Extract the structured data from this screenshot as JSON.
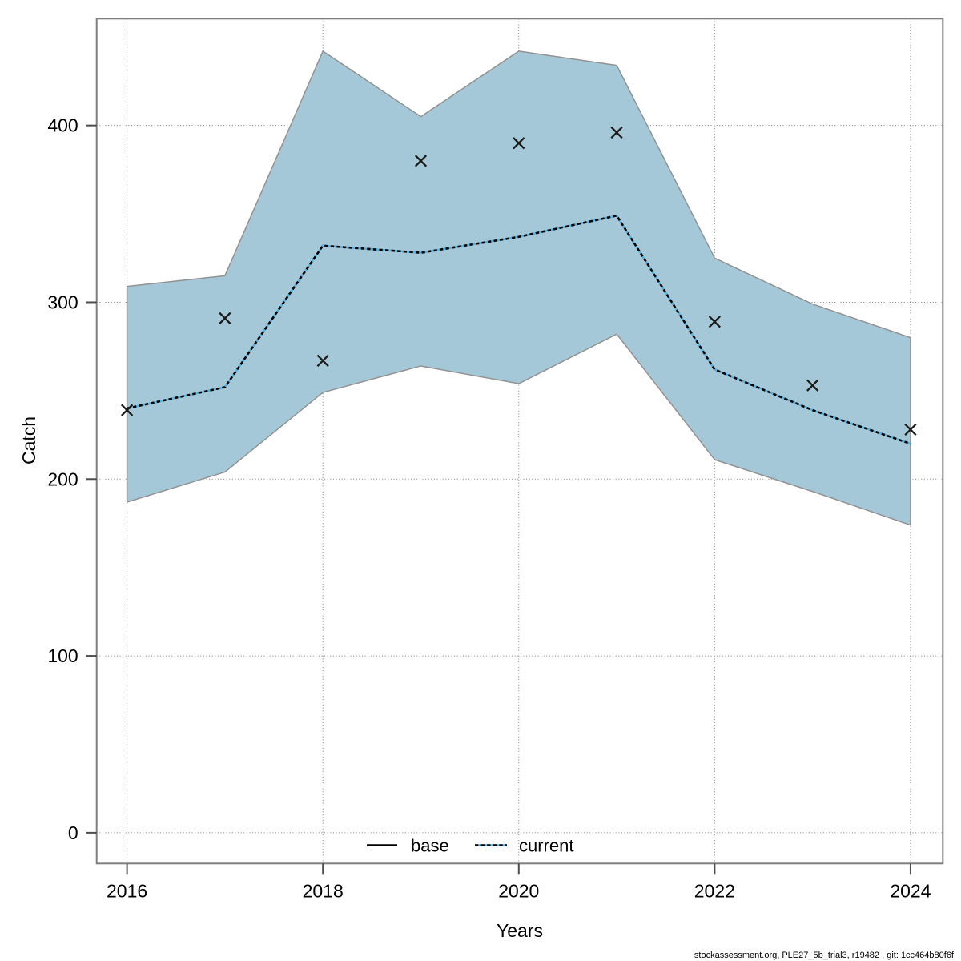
{
  "page": {
    "footer_text": "stockassessment.org, PLE27_5b_trial3, r19482 , git: 1cc464b80f6f"
  },
  "chart_data": {
    "type": "area",
    "title": "",
    "xlabel": "Years",
    "ylabel": "Catch",
    "x": [
      2016,
      2017,
      2018,
      2019,
      2020,
      2021,
      2022,
      2023,
      2024
    ],
    "x_ticks": [
      2016,
      2018,
      2020,
      2022,
      2024
    ],
    "y_ticks": [
      0,
      100,
      200,
      300,
      400
    ],
    "xlim": [
      2015.69,
      2024.33
    ],
    "ylim": [
      -17.4,
      460.4
    ],
    "grid": true,
    "legend_position": "bottom-center",
    "legend": [
      {
        "label": "base",
        "style": "solid-black-line"
      },
      {
        "label": "current",
        "style": "dashed-blue-line"
      }
    ],
    "series": [
      {
        "name": "current",
        "type": "line",
        "line_style": "dashed",
        "values": [
          240,
          252,
          332,
          328,
          337,
          349,
          262,
          239,
          220
        ]
      },
      {
        "name": "observations",
        "type": "scatter",
        "marker": "x-cross",
        "values": [
          239,
          291,
          267,
          380,
          390,
          396,
          289,
          253,
          228
        ]
      }
    ],
    "band": {
      "name": "confidence-interval",
      "lower": [
        187,
        204,
        249,
        264,
        254,
        282,
        211,
        193,
        174
      ],
      "upper": [
        309,
        315,
        442,
        405,
        442,
        434,
        325,
        299,
        280
      ]
    },
    "colors": {
      "band_fill": "#a5c8d8",
      "band_edge": "#929292",
      "current_line_base": "#58b0dc",
      "current_line_dash": "#000000",
      "base_line": "#000000",
      "marker": "#1a1a1a",
      "grid": "#7f7f7f",
      "frame": "#7f7f7f",
      "tick": "#4d4d4d",
      "text": "#000000"
    }
  }
}
